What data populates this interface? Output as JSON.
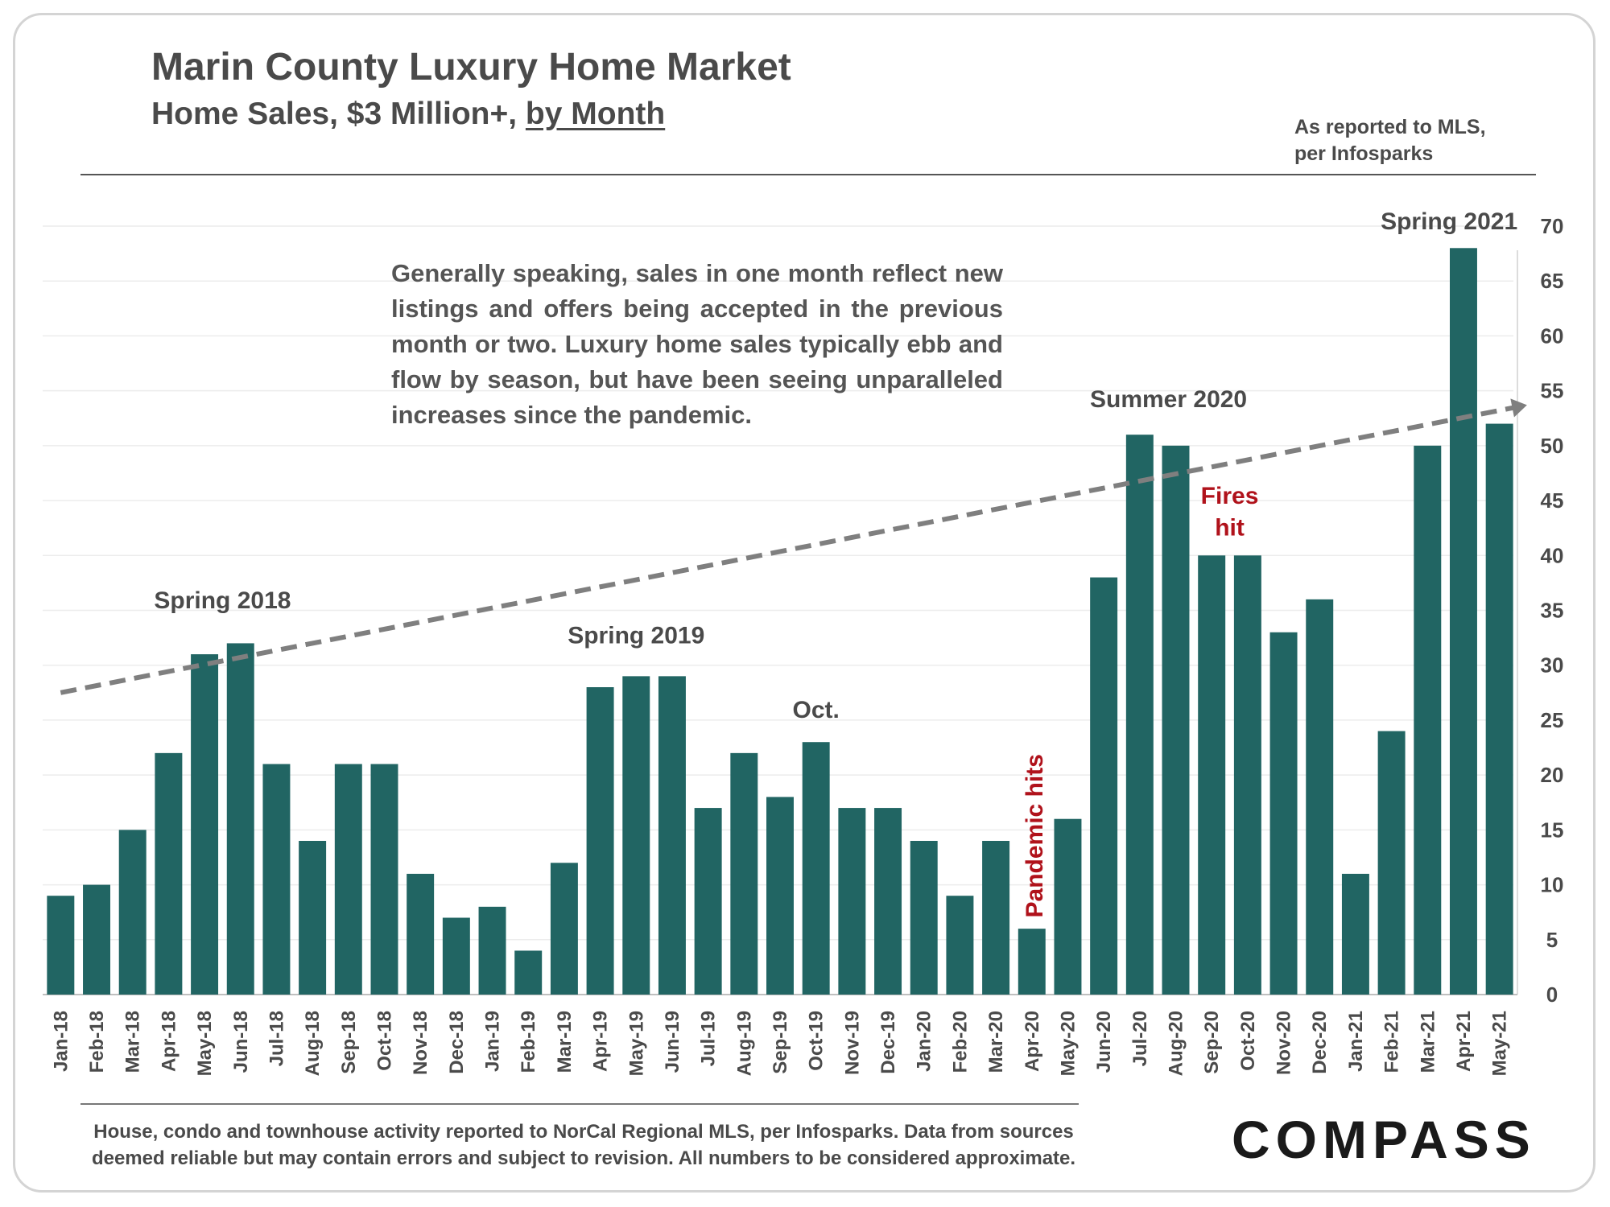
{
  "header": {
    "title": "Marin County Luxury Home Market",
    "subtitle_prefix": "Home Sales, $3 Million+, ",
    "subtitle_emph": "by Month",
    "source_line1": "As reported to MLS,",
    "source_line2": "per Infosparks"
  },
  "note": "Generally speaking, sales in one month reflect new listings and offers being accepted in the previous month or two. Luxury home sales typically ebb and flow by season, but have been seeing unparalleled increases since the pandemic.",
  "footer": {
    "line1": "House, condo and townhouse activity reported to NorCal Regional MLS, per Infosparks. Data from sources",
    "line2": "deemed reliable but may contain errors and subject to revision. All numbers to be considered approximate."
  },
  "logo": "COMPASS",
  "colors": {
    "bar": "#216563",
    "annotation_red": "#b0121b",
    "trend": "#7f7f7f",
    "text": "#4a4a4a"
  },
  "chart_data": {
    "type": "bar",
    "ylim": [
      0,
      70
    ],
    "yticks": [
      0,
      5,
      10,
      15,
      20,
      25,
      30,
      35,
      40,
      45,
      50,
      55,
      60,
      65,
      70
    ],
    "y_axis_side": "right",
    "grid": true,
    "categories": [
      "Jan-18",
      "Feb-18",
      "Mar-18",
      "Apr-18",
      "May-18",
      "Jun-18",
      "Jul-18",
      "Aug-18",
      "Sep-18",
      "Oct-18",
      "Nov-18",
      "Dec-18",
      "Jan-19",
      "Feb-19",
      "Mar-19",
      "Apr-19",
      "May-19",
      "Jun-19",
      "Jul-19",
      "Aug-19",
      "Sep-19",
      "Oct-19",
      "Nov-19",
      "Dec-19",
      "Jan-20",
      "Feb-20",
      "Mar-20",
      "Apr-20",
      "May-20",
      "Jun-20",
      "Jul-20",
      "Aug-20",
      "Sep-20",
      "Oct-20",
      "Nov-20",
      "Dec-20",
      "Jan-21",
      "Feb-21",
      "Mar-21",
      "Apr-21",
      "May-21"
    ],
    "values": [
      9,
      10,
      15,
      22,
      31,
      32,
      21,
      14,
      21,
      21,
      11,
      7,
      8,
      4,
      12,
      28,
      29,
      29,
      17,
      22,
      18,
      23,
      17,
      17,
      14,
      9,
      14,
      6,
      16,
      38,
      51,
      50,
      40,
      40,
      33,
      36,
      11,
      24,
      50,
      68,
      52
    ],
    "trend_line": {
      "from": [
        0,
        27.5
      ],
      "to": [
        40.9,
        53.7
      ],
      "style": "dashed",
      "arrow": true
    },
    "annotations": [
      {
        "text": "Spring 2018",
        "x": 4.5,
        "y": 35.2,
        "color": "text"
      },
      {
        "text": "Spring 2019",
        "x": 16,
        "y": 32,
        "color": "text"
      },
      {
        "text": "Oct.",
        "x": 21,
        "y": 25.2,
        "color": "text"
      },
      {
        "text": "Pandemic hits",
        "x": 27.3,
        "y": 7,
        "color": "annotation_red",
        "rotated": true
      },
      {
        "text": "Summer 2020",
        "x": 30.8,
        "y": 53.5,
        "color": "text"
      },
      {
        "text": "Fires",
        "x": 32.5,
        "y": 44.7,
        "color": "annotation_red"
      },
      {
        "text": "hit",
        "x": 32.5,
        "y": 41.8,
        "color": "annotation_red"
      },
      {
        "text": "Spring 2021",
        "x": 38.6,
        "y": 69.7,
        "color": "text"
      }
    ]
  }
}
